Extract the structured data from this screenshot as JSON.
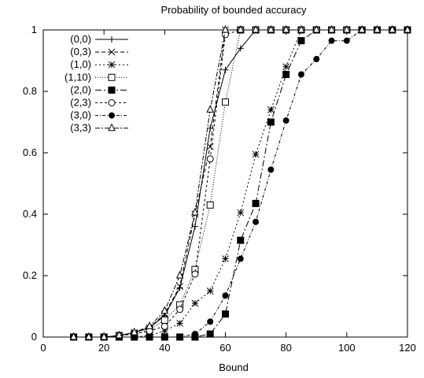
{
  "chart_data": {
    "type": "line",
    "title": "Probability of bounded accuracy",
    "xlabel": "Bound",
    "ylabel": "",
    "xlim": [
      0,
      120
    ],
    "ylim": [
      0,
      1
    ],
    "xticks": [
      0,
      20,
      40,
      60,
      80,
      100,
      120
    ],
    "yticks": [
      0,
      0.2,
      0.4,
      0.6,
      0.8,
      1
    ],
    "xtick_labels": [
      "0",
      "20",
      "40",
      "60",
      "80",
      "100",
      "120"
    ],
    "ytick_labels": [
      "0",
      "0.2",
      "0.4",
      "0.6",
      "0.8",
      "1"
    ],
    "grid": false,
    "legend_position": "top-left",
    "series": [
      {
        "name": "(0,0)",
        "marker": "plus",
        "dash": "",
        "x": [
          10,
          15,
          20,
          25,
          30,
          35,
          40,
          45,
          50,
          55,
          60,
          65,
          70,
          75,
          80,
          85,
          90,
          95,
          100,
          105,
          110,
          115,
          120
        ],
        "y": [
          0,
          0,
          0,
          0.005,
          0.015,
          0.03,
          0.07,
          0.16,
          0.36,
          0.68,
          0.87,
          0.94,
          1,
          1,
          1,
          1,
          1,
          1,
          1,
          1,
          1,
          1,
          1
        ]
      },
      {
        "name": "(0,3)",
        "marker": "x",
        "dash": "5,3",
        "x": [
          10,
          15,
          20,
          25,
          30,
          35,
          40,
          45,
          50,
          55,
          60,
          65,
          70,
          75,
          80,
          85,
          90,
          95,
          100,
          105,
          110,
          115,
          120
        ],
        "y": [
          0,
          0,
          0,
          0.005,
          0.015,
          0.03,
          0.075,
          0.165,
          0.4,
          0.62,
          1,
          1,
          1,
          1,
          1,
          1,
          1,
          1,
          1,
          1,
          1,
          1,
          1
        ]
      },
      {
        "name": "(1,0)",
        "marker": "asterisk",
        "dash": "2,3",
        "x": [
          10,
          15,
          20,
          25,
          30,
          35,
          40,
          45,
          50,
          55,
          60,
          65,
          70,
          75,
          80,
          85,
          90,
          95,
          100,
          105,
          110,
          115,
          120
        ],
        "y": [
          0,
          0,
          0,
          0,
          0,
          0.005,
          0.02,
          0.045,
          0.11,
          0.15,
          0.255,
          0.405,
          0.595,
          0.74,
          0.88,
          1,
          1,
          1,
          1,
          1,
          1,
          1,
          1
        ]
      },
      {
        "name": "(1,10)",
        "marker": "open-square",
        "dash": "1,2",
        "x": [
          10,
          15,
          20,
          25,
          30,
          35,
          40,
          45,
          50,
          55,
          60,
          65,
          70,
          75,
          80,
          85,
          90,
          95,
          100,
          105,
          110,
          115,
          120
        ],
        "y": [
          0,
          0,
          0,
          0.005,
          0.01,
          0.025,
          0.055,
          0.105,
          0.22,
          0.43,
          0.765,
          1,
          1,
          1,
          1,
          1,
          1,
          1,
          1,
          1,
          1,
          1,
          1
        ]
      },
      {
        "name": "(2,0)",
        "marker": "filled-square",
        "dash": "8,3,2,3",
        "x": [
          10,
          15,
          20,
          25,
          30,
          35,
          40,
          45,
          50,
          55,
          60,
          65,
          70,
          75,
          80,
          85,
          90,
          95,
          100,
          105,
          110,
          115,
          120
        ],
        "y": [
          0,
          0,
          0,
          0,
          0,
          0,
          0,
          0,
          0,
          0.01,
          0.075,
          0.315,
          0.435,
          0.7,
          0.855,
          0.965,
          1,
          1,
          1,
          1,
          1,
          1,
          1
        ]
      },
      {
        "name": "(2,3)",
        "marker": "open-circle",
        "dash": "3,3",
        "x": [
          10,
          15,
          20,
          25,
          30,
          35,
          40,
          45,
          50,
          55,
          60,
          65,
          70,
          75,
          80,
          85,
          90,
          95,
          100,
          105,
          110,
          115,
          120
        ],
        "y": [
          0,
          0,
          0,
          0.005,
          0.01,
          0.02,
          0.035,
          0.09,
          0.205,
          0.58,
          0.985,
          1,
          1,
          1,
          1,
          1,
          1,
          1,
          1,
          1,
          1,
          1,
          1
        ]
      },
      {
        "name": "(3,0)",
        "marker": "filled-circle",
        "dash": "4,2,1,2",
        "x": [
          10,
          15,
          20,
          25,
          30,
          35,
          40,
          45,
          50,
          55,
          60,
          65,
          70,
          75,
          80,
          85,
          90,
          95,
          100,
          105,
          110,
          115,
          120
        ],
        "y": [
          0,
          0,
          0,
          0,
          0,
          0,
          0,
          0,
          0.01,
          0.05,
          0.135,
          0.255,
          0.375,
          0.545,
          0.705,
          0.855,
          0.905,
          0.965,
          0.965,
          1,
          1,
          1,
          1
        ]
      },
      {
        "name": "(3,3)",
        "marker": "open-triangle",
        "dash": "6,2,2,2",
        "x": [
          10,
          15,
          20,
          25,
          30,
          35,
          40,
          45,
          50,
          55,
          60,
          65,
          70,
          75,
          80,
          85,
          90,
          95,
          100,
          105,
          110,
          115,
          120
        ],
        "y": [
          0,
          0,
          0,
          0.005,
          0.015,
          0.035,
          0.085,
          0.2,
          0.405,
          0.74,
          1,
          1,
          1,
          1,
          1,
          1,
          1,
          1,
          1,
          1,
          1,
          1,
          1
        ]
      }
    ]
  }
}
